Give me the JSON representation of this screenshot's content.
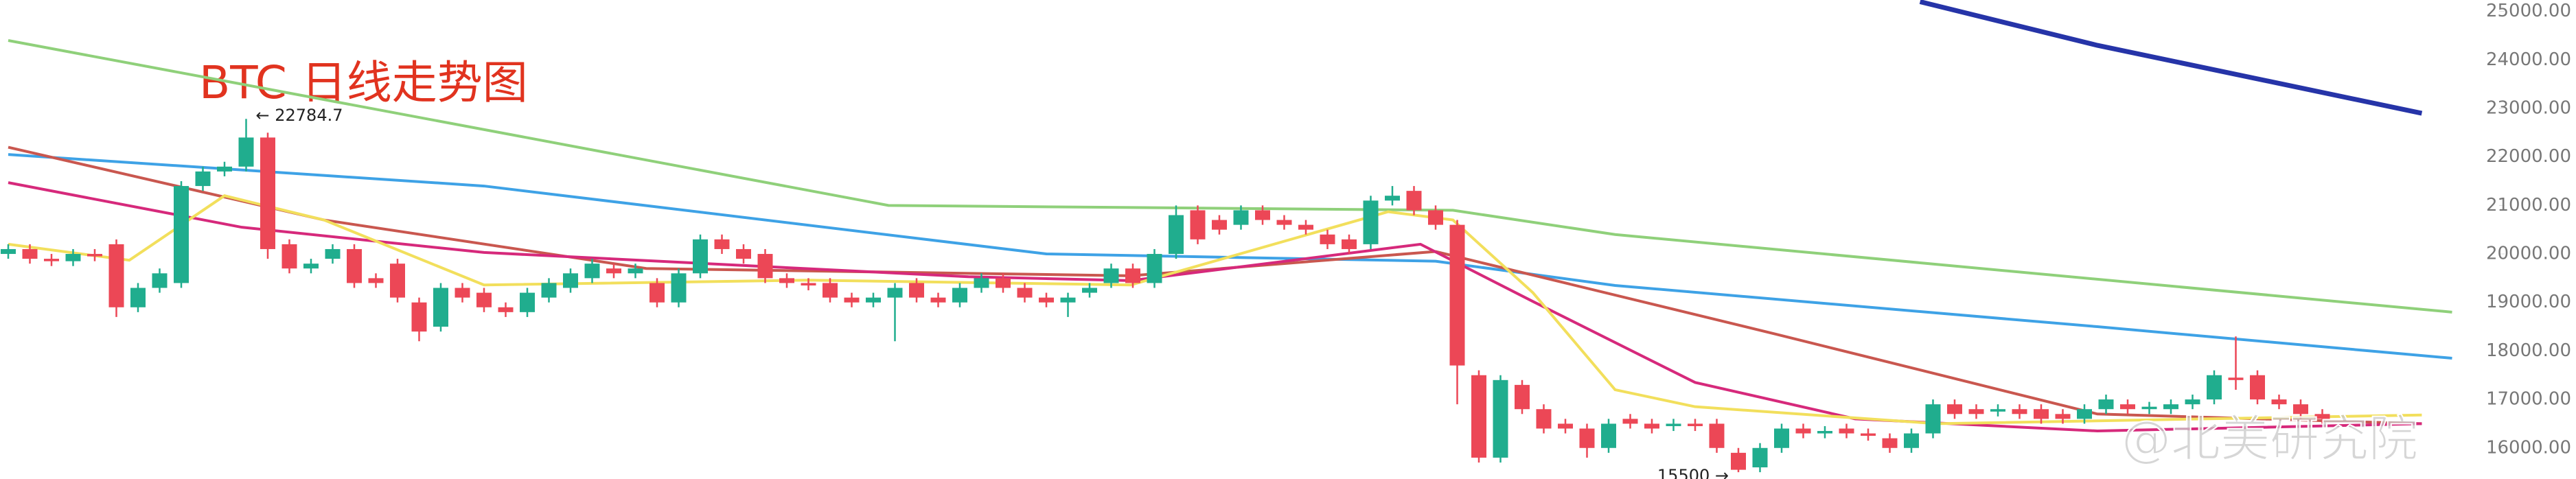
{
  "chart_data": {
    "type": "candlestick",
    "title": "BTC 日线走势图",
    "up_color": "#20ad8e",
    "down_color": "#ec4756",
    "open": [
      20000,
      20100,
      19900,
      19850,
      20000,
      20200,
      18900,
      19300,
      19400,
      21400,
      21700,
      21800,
      22400,
      20200,
      19700,
      19900,
      20100,
      19500,
      19800,
      19000,
      18500,
      19300,
      19200,
      18900,
      18800,
      19100,
      19300,
      19500,
      19700,
      19600,
      19400,
      19000,
      19600,
      20300,
      20100,
      20000,
      19500,
      19400,
      19400,
      19100,
      19000,
      19100,
      19400,
      19100,
      19000,
      19300,
      19500,
      19300,
      19100,
      19000,
      19200,
      19400,
      19700,
      19400,
      20000,
      20900,
      20700,
      20600,
      20900,
      20700,
      20600,
      20400,
      20300,
      20200,
      21100,
      21300,
      20900,
      20600,
      17500,
      15800,
      17300,
      16800,
      16500,
      16400,
      16000,
      16600,
      16500,
      16450,
      16500,
      16500,
      15900,
      15600,
      16000,
      16400,
      16300,
      16400,
      16300,
      16200,
      16000,
      16300,
      16900,
      16800,
      16750,
      16800,
      16800,
      16700,
      16600,
      16800,
      16900,
      16800,
      16800,
      16900,
      17000,
      17450,
      17500,
      17000,
      16900,
      16700
    ],
    "close": [
      20100,
      19900,
      19850,
      20000,
      19950,
      18900,
      19300,
      19600,
      21400,
      21700,
      21800,
      22400,
      20100,
      19700,
      19800,
      20100,
      19400,
      19400,
      19100,
      18400,
      19300,
      19100,
      18900,
      18800,
      19200,
      19400,
      19600,
      19800,
      19600,
      19700,
      19000,
      19600,
      20300,
      20100,
      19900,
      19500,
      19400,
      19350,
      19100,
      19000,
      19100,
      19300,
      19100,
      19000,
      19300,
      19500,
      19300,
      19100,
      19000,
      19100,
      19300,
      19700,
      19400,
      20000,
      20800,
      20300,
      20500,
      20900,
      20700,
      20600,
      20500,
      20200,
      20100,
      21100,
      21200,
      20900,
      20600,
      17700,
      15800,
      17400,
      16800,
      16400,
      16400,
      16000,
      16500,
      16500,
      16400,
      16500,
      16450,
      16000,
      15550,
      16000,
      16400,
      16300,
      16350,
      16300,
      16250,
      16000,
      16300,
      16900,
      16700,
      16700,
      16800,
      16700,
      16600,
      16600,
      16800,
      17000,
      16800,
      16850,
      16900,
      17000,
      17500,
      17400,
      17000,
      16900,
      16700,
      16600
    ],
    "high": [
      20200,
      20200,
      20000,
      20100,
      20100,
      20300,
      19400,
      19700,
      21500,
      21800,
      21900,
      22784.7,
      22500,
      20300,
      19900,
      20200,
      20200,
      19600,
      19900,
      19100,
      19400,
      19400,
      19300,
      19000,
      19300,
      19500,
      19700,
      19900,
      19800,
      19800,
      19500,
      19700,
      20400,
      20400,
      20200,
      20100,
      19600,
      19500,
      19500,
      19200,
      19200,
      19400,
      19500,
      19200,
      19400,
      19600,
      19600,
      19400,
      19200,
      19200,
      19400,
      19800,
      19800,
      20100,
      21000,
      21000,
      20800,
      21000,
      21000,
      20800,
      20700,
      20500,
      20400,
      21200,
      21400,
      21400,
      21000,
      20700,
      17600,
      17500,
      17400,
      16900,
      16600,
      16500,
      16600,
      16700,
      16600,
      16600,
      16600,
      16600,
      16000,
      16100,
      16500,
      16500,
      16450,
      16500,
      16400,
      16300,
      16400,
      17000,
      17000,
      16900,
      16900,
      16900,
      16900,
      16800,
      16900,
      17100,
      17000,
      16950,
      17000,
      17100,
      17600,
      18300,
      17600,
      17100,
      17000,
      16800
    ],
    "low": [
      19900,
      19800,
      19750,
      19750,
      19850,
      18700,
      18800,
      19200,
      19300,
      21300,
      21600,
      21700,
      19900,
      19600,
      19600,
      19800,
      19300,
      19300,
      19000,
      18200,
      18400,
      19000,
      18800,
      18700,
      18700,
      19000,
      19200,
      19400,
      19500,
      19500,
      18900,
      18900,
      19500,
      20000,
      19800,
      19400,
      19300,
      19250,
      19000,
      18900,
      18900,
      18200,
      19000,
      18900,
      18900,
      19200,
      19200,
      19000,
      18900,
      18700,
      19100,
      19300,
      19300,
      19300,
      19900,
      20200,
      20400,
      20500,
      20600,
      20500,
      20400,
      20100,
      20000,
      20100,
      21000,
      20800,
      20500,
      16900,
      15700,
      15700,
      16700,
      16300,
      16300,
      15800,
      15900,
      16400,
      16300,
      16350,
      16350,
      15900,
      15500,
      15500,
      15900,
      16200,
      16200,
      16200,
      16150,
      15900,
      15900,
      16200,
      16600,
      16600,
      16650,
      16600,
      16500,
      16500,
      16500,
      16700,
      16700,
      16700,
      16700,
      16800,
      16900,
      17200,
      16900,
      16800,
      16600,
      16500
    ],
    "series": [
      {
        "color": "#8fd07a",
        "x": [
          0,
          10.8,
          40.7,
          66.8,
          74.3,
          113
        ],
        "values": [
          24400,
          23500,
          21000,
          20900,
          20400,
          18800
        ]
      },
      {
        "color": "#3ea2e6",
        "x": [
          0,
          22,
          48,
          66,
          74.3,
          96.6,
          113
        ],
        "values": [
          22050,
          21400,
          20000,
          19850,
          19350,
          18500,
          17850
        ]
      },
      {
        "color": "#2634a8",
        "x": [
          88.4,
          96.6,
          111.6
        ],
        "values": [
          25200,
          24300,
          22900
        ]
      },
      {
        "color": "#c9574f",
        "x": [
          0,
          14.6,
          29.5,
          51.9,
          66,
          81.7,
          96.6,
          111.6
        ],
        "values": [
          22200,
          20700,
          19700,
          19550,
          20050,
          18350,
          16700,
          16500
        ]
      },
      {
        "color": "#d6297b",
        "x": [
          0,
          10.8,
          22,
          44.4,
          51.9,
          65.3,
          70.5,
          78,
          85.4,
          96.6,
          111.6
        ],
        "values": [
          21470,
          20550,
          20030,
          19530,
          19450,
          20200,
          19020,
          17350,
          16600,
          16350,
          16500
        ]
      },
      {
        "color": "#f2df5c",
        "x": [
          0,
          5.6,
          10,
          14.6,
          22,
          37,
          51.9,
          63.8,
          66.8,
          70.5,
          74.3,
          78,
          89.2,
          111.6
        ],
        "values": [
          20200,
          19870,
          21200,
          20700,
          19360,
          19460,
          19360,
          20870,
          20700,
          19200,
          17200,
          16850,
          16500,
          16680
        ]
      }
    ],
    "ylim": [
      15360,
      25235
    ],
    "yticks": [
      {
        "value": 16000,
        "label": "16000.00"
      },
      {
        "value": 17000,
        "label": "17000.00"
      },
      {
        "value": 18000,
        "label": "18000.00"
      },
      {
        "value": 19000,
        "label": "19000.00"
      },
      {
        "value": 20000,
        "label": "20000.00"
      },
      {
        "value": 21000,
        "label": "21000.00"
      },
      {
        "value": 22000,
        "label": "22000.00"
      },
      {
        "value": 23000,
        "label": "23000.00"
      },
      {
        "value": 24000,
        "label": "24000.00"
      },
      {
        "value": 25000,
        "label": "25000.00"
      }
    ],
    "annotations": [
      "← 22784.7",
      "15500 →",
      "@北美研究院"
    ]
  }
}
